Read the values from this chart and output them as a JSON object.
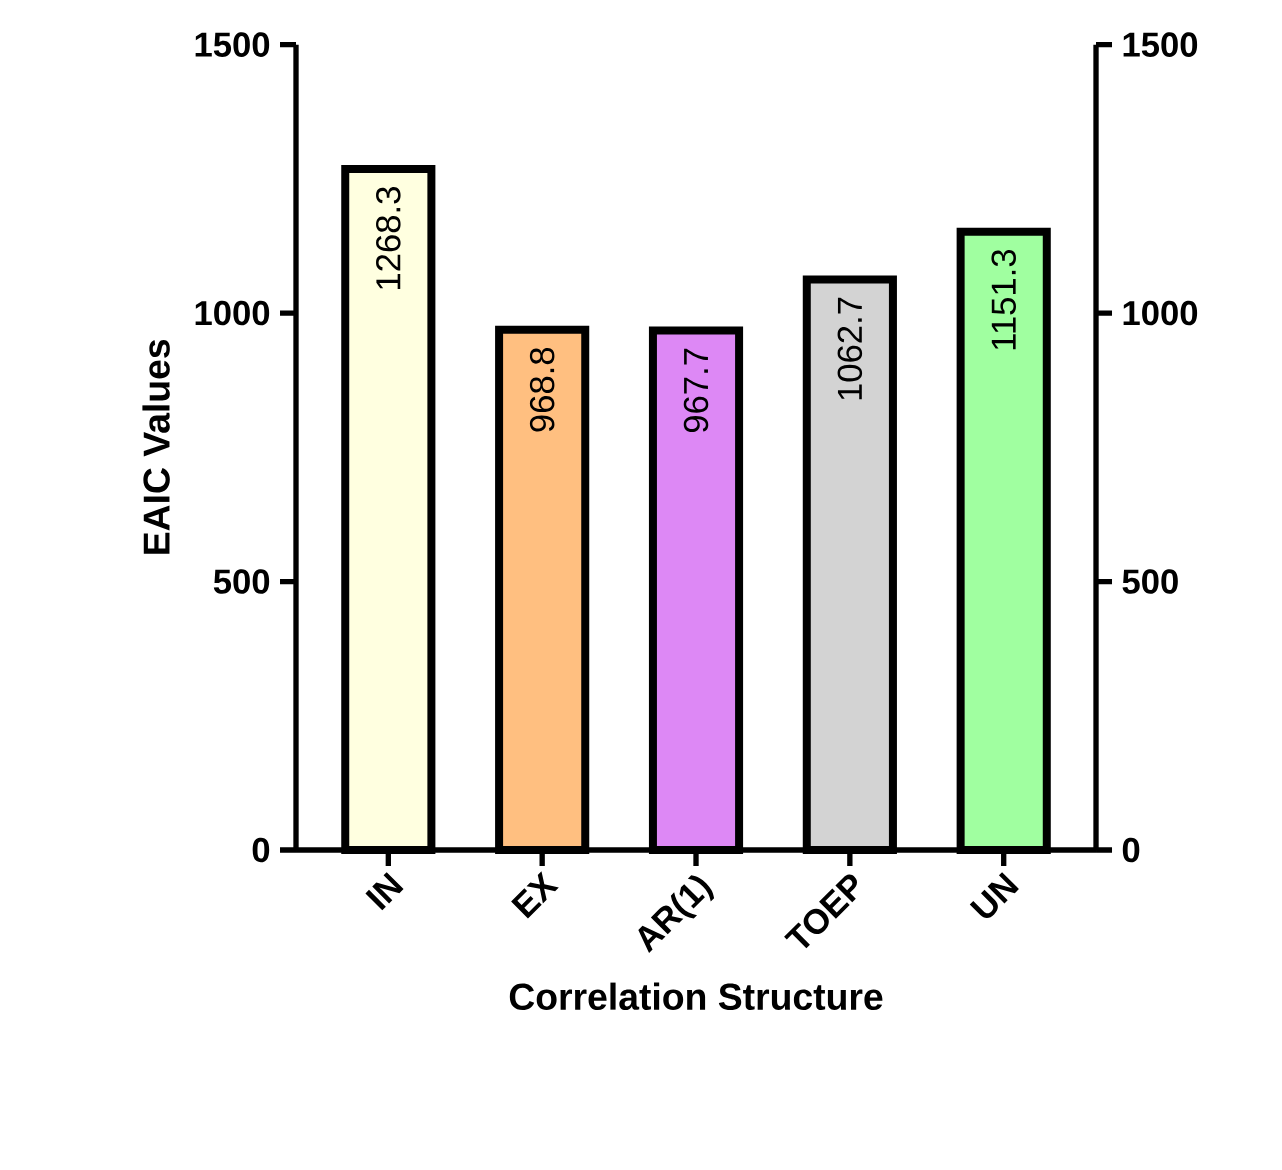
{
  "chart_data": {
    "type": "bar",
    "xlabel": "Correlation Structure",
    "ylabel": "EAIC Values",
    "categories": [
      "IN",
      "EX",
      "AR(1)",
      "TOEP",
      "UN"
    ],
    "values": [
      1268.3,
      968.8,
      967.7,
      1062.7,
      1151.3
    ],
    "colors": [
      "#ffffe0",
      "#ffbf80",
      "#dd88f5",
      "#d3d3d3",
      "#a0ffa0"
    ],
    "ylim": [
      0,
      1500
    ],
    "yticks": [
      0,
      500,
      1000,
      1500
    ],
    "y2lim": [
      0,
      1500
    ],
    "y2ticks": [
      0,
      500,
      1000,
      1500
    ],
    "data_labels": true,
    "grid": false
  }
}
